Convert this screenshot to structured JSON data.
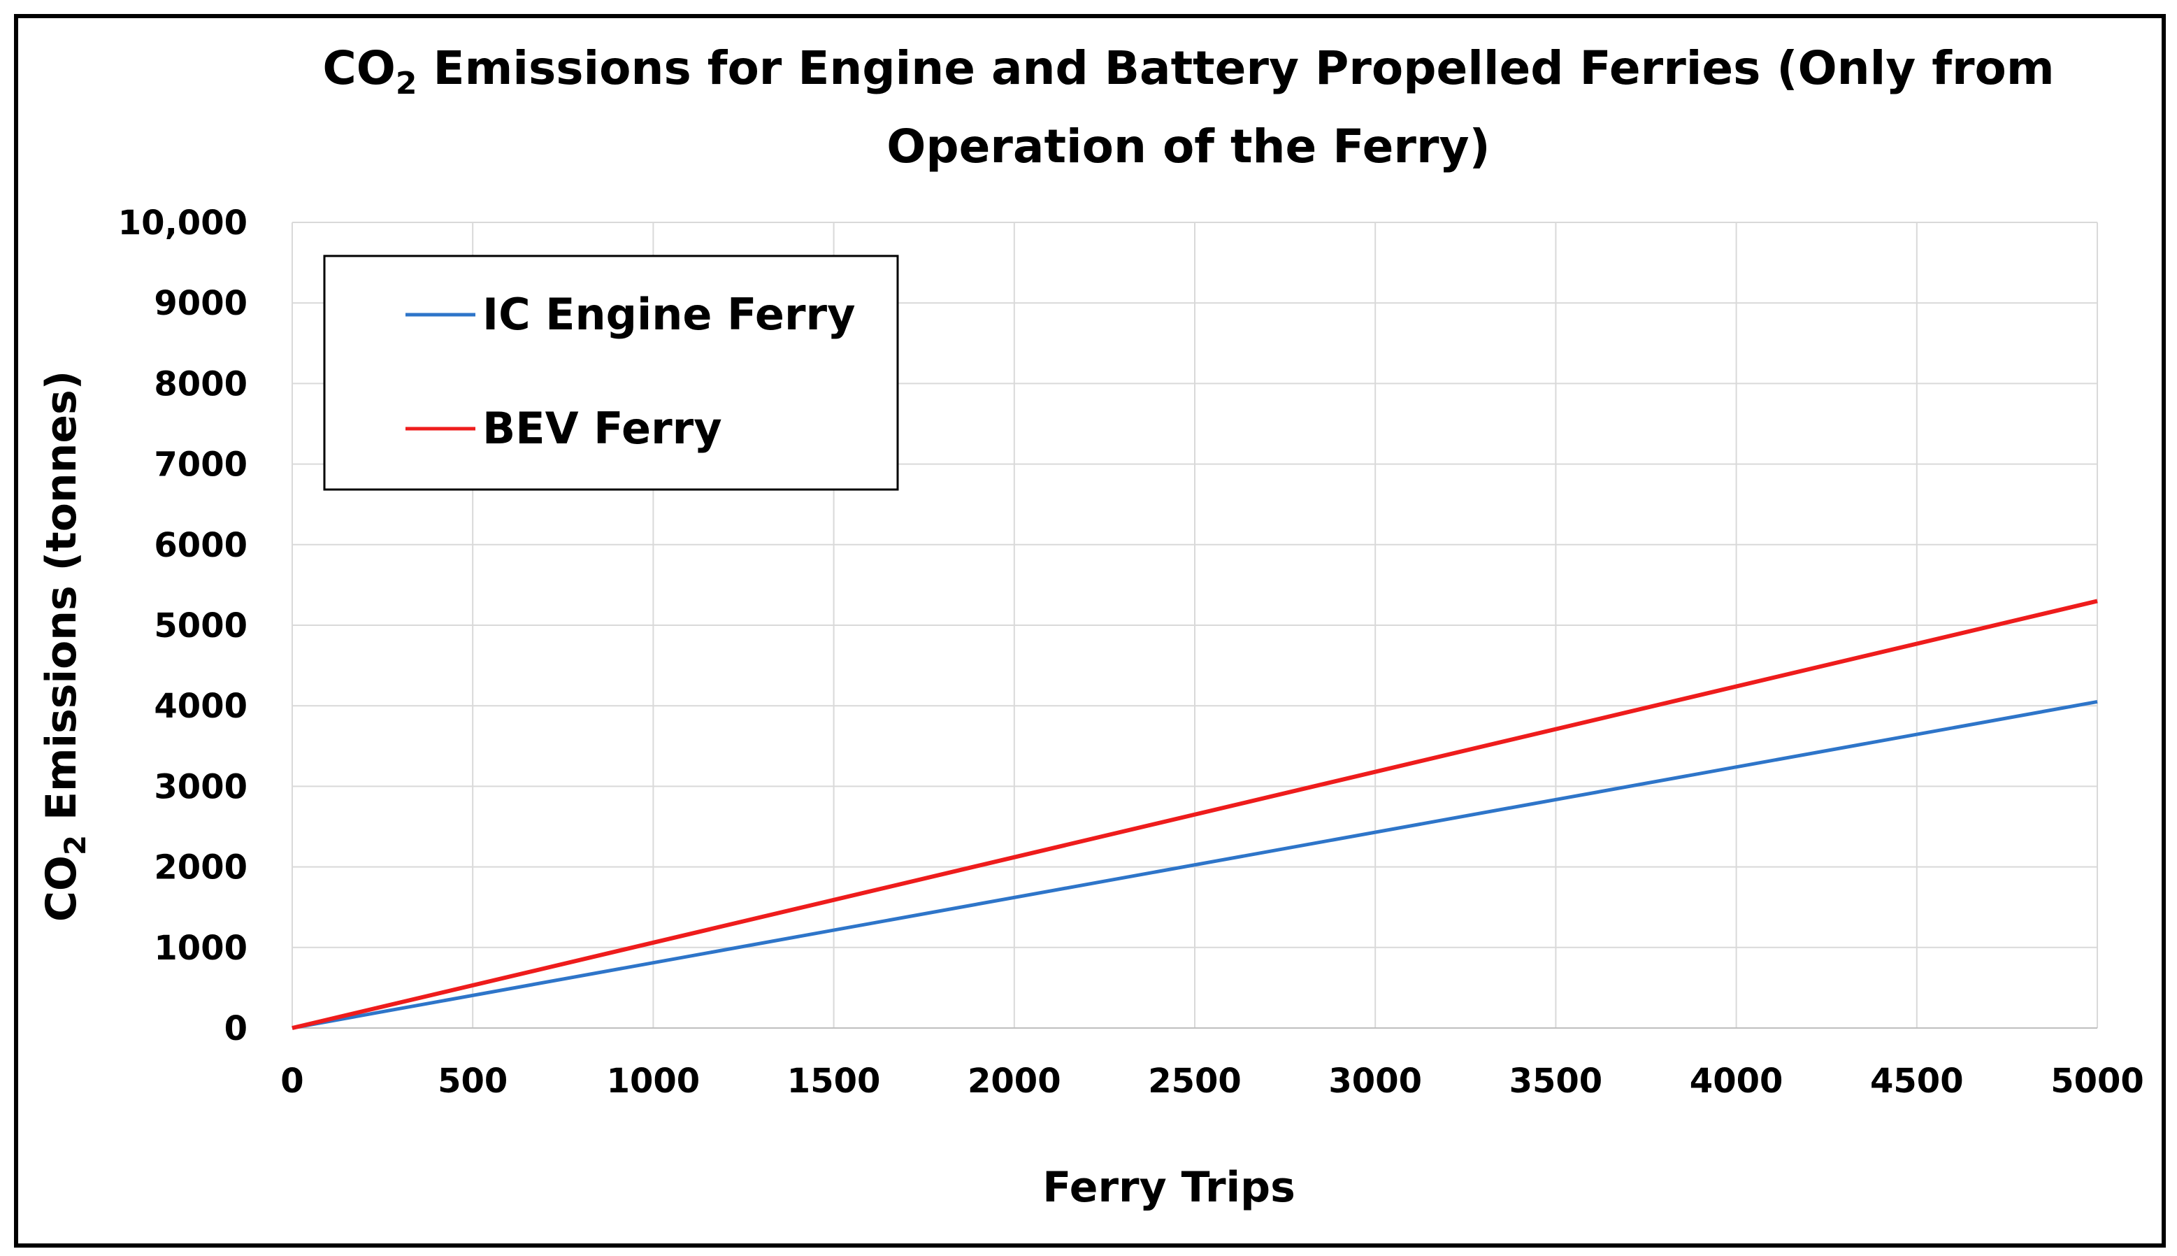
{
  "chart_data": {
    "type": "line",
    "title_main": "CO",
    "title_sub": "2",
    "title_rest": " Emissions for Engine and Battery Propelled Ferries (Only from",
    "title_line2": "Operation of the Ferry)",
    "xlabel": "Ferry Trips",
    "ylabel_main": "CO",
    "ylabel_sub": "2",
    "ylabel_rest": " Emissions (tonnes)",
    "xlim": [
      0,
      5000
    ],
    "ylim": [
      0,
      10000
    ],
    "x_ticks": [
      0,
      500,
      1000,
      1500,
      2000,
      2500,
      3000,
      3500,
      4000,
      4500,
      5000
    ],
    "x_tick_labels": [
      "0",
      "500",
      "1000",
      "1500",
      "2000",
      "2500",
      "3000",
      "3500",
      "4000",
      "4500",
      "5000"
    ],
    "y_ticks": [
      0,
      1000,
      2000,
      3000,
      4000,
      5000,
      6000,
      7000,
      8000,
      9000,
      10000
    ],
    "y_tick_labels": [
      "0",
      "1000",
      "2000",
      "3000",
      "4000",
      "5000",
      "6000",
      "7000",
      "8000",
      "9000",
      "10,000"
    ],
    "grid": true,
    "legend_position": "top-left",
    "series": [
      {
        "name": "IC Engine Ferry",
        "color": "#2e75c9",
        "x": [
          0,
          5000
        ],
        "values": [
          0,
          4050
        ]
      },
      {
        "name": "BEV Ferry",
        "color": "#ee1c1c",
        "x": [
          0,
          5000
        ],
        "values": [
          0,
          5300
        ]
      }
    ]
  }
}
